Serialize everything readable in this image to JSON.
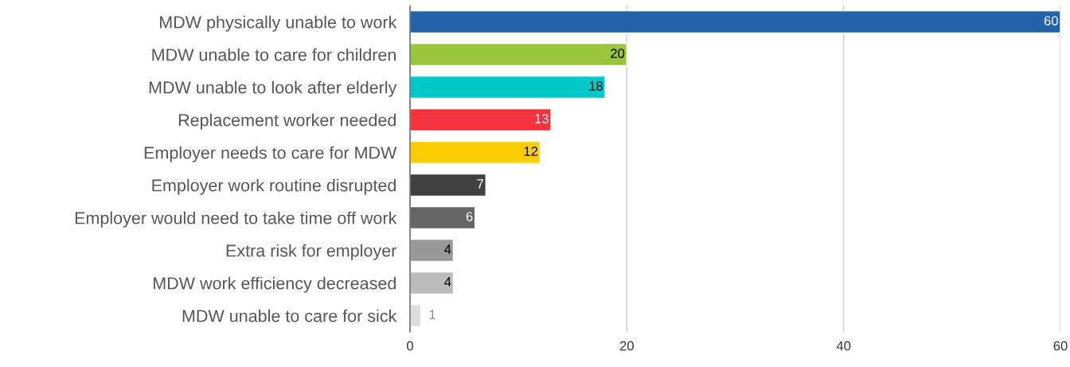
{
  "chart_data": {
    "type": "bar",
    "orientation": "horizontal",
    "categories": [
      "MDW physically unable to work",
      "MDW unable to care for children",
      "MDW unable to look after elderly",
      "Replacement worker needed",
      "Employer needs to care for MDW",
      "Employer work routine disrupted",
      "Employer would need to take time off work",
      "Extra risk for employer",
      "MDW work efficiency decreased",
      "MDW unable to care for sick"
    ],
    "values": [
      60,
      20,
      18,
      13,
      12,
      7,
      6,
      4,
      4,
      1
    ],
    "colors": [
      "#2463aa",
      "#9bc53d",
      "#00c9c9",
      "#f4333f",
      "#ffcc00",
      "#404040",
      "#666666",
      "#999999",
      "#bbbbbb",
      "#dddddd"
    ],
    "xlim": [
      0,
      60
    ],
    "xticks": [
      0,
      20,
      40,
      60
    ],
    "grid": "x",
    "data_labels": true,
    "legend": false
  }
}
